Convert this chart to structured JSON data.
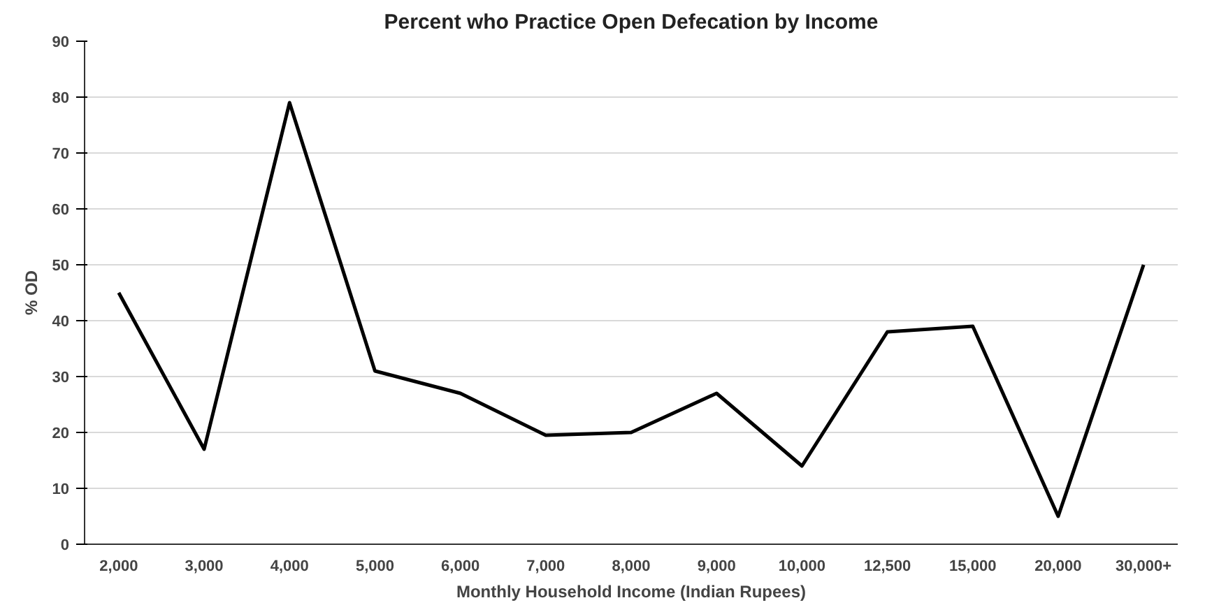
{
  "chart_data": {
    "type": "line",
    "title": "Percent who Practice Open Defecation by Income",
    "xlabel": "Monthly Household Income (Indian Rupees)",
    "ylabel": "% OD",
    "categories": [
      "2,000",
      "3,000",
      "4,000",
      "5,000",
      "6,000",
      "7,000",
      "8,000",
      "9,000",
      "10,000",
      "12,500",
      "15,000",
      "20,000",
      "30,000+"
    ],
    "series": [
      {
        "color": "#000000",
        "values": [
          45,
          17,
          79,
          31,
          27,
          19.5,
          20,
          27,
          14,
          38,
          39,
          5,
          50
        ]
      }
    ],
    "ylim": [
      0,
      90
    ],
    "yticks": [
      0,
      10,
      20,
      30,
      40,
      50,
      60,
      70,
      80,
      90
    ],
    "grid": "y"
  }
}
